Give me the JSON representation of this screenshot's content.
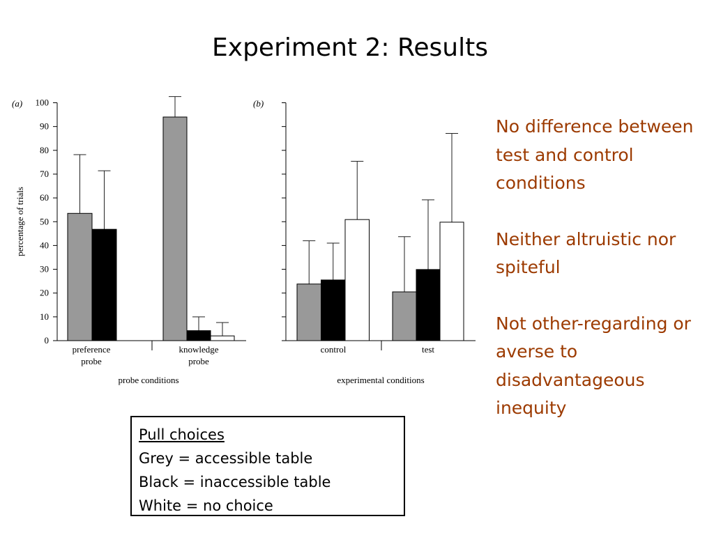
{
  "slide": {
    "title": "Experiment 2: Results",
    "notes": [
      "No difference between test and control conditions",
      "Neither altruistic nor spiteful",
      "Not other-regarding or averse to disadvantageous inequity"
    ],
    "legend": {
      "heading": "Pull choices",
      "items": [
        "Grey = accessible table",
        "Black = inaccessible table",
        "White = no choice"
      ]
    }
  },
  "colors": {
    "grey": "#999999",
    "black": "#000000",
    "white": "#ffffff",
    "note_text": "#9c3a00"
  },
  "chart_data": [
    {
      "type": "bar",
      "panel_label": "(a)",
      "categories": [
        [
          "preference",
          "probe"
        ],
        [
          "knowledge",
          "probe"
        ]
      ],
      "series": [
        {
          "color": "grey",
          "values": [
            53.5,
            94
          ],
          "error_upper": [
            78.2,
            102.6
          ]
        },
        {
          "color": "black",
          "values": [
            46.8,
            4.2
          ],
          "error_upper": [
            71.4,
            10
          ]
        },
        {
          "color": "white",
          "values": [
            0,
            2
          ],
          "error_upper": [
            null,
            7.6
          ]
        }
      ],
      "xlabel": "probe conditions",
      "ylabel": "percentage of trials",
      "ylim": [
        0,
        100
      ],
      "yticks": [
        0,
        10,
        20,
        30,
        40,
        50,
        60,
        70,
        80,
        90,
        100
      ]
    },
    {
      "type": "bar",
      "panel_label": "(b)",
      "categories": [
        [
          "control"
        ],
        [
          "test"
        ]
      ],
      "series": [
        {
          "color": "grey",
          "values": [
            23.8,
            20.5
          ],
          "error_upper": [
            42,
            43.7
          ]
        },
        {
          "color": "black",
          "values": [
            25.5,
            29.9
          ],
          "error_upper": [
            41,
            59.2
          ]
        },
        {
          "color": "white",
          "values": [
            50.9,
            49.8
          ],
          "error_upper": [
            75.4,
            87.1
          ]
        }
      ],
      "xlabel": "experimental conditions",
      "ylim": [
        0,
        100
      ]
    }
  ]
}
